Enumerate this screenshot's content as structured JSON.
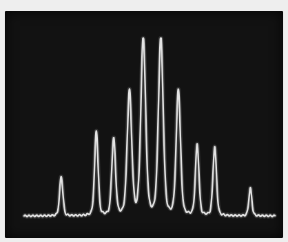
{
  "chart_data": {
    "type": "line",
    "title": "",
    "xlabel": "",
    "ylabel": "",
    "grid": false,
    "legend": "none",
    "trace_color": "#e3e3e3",
    "background_color": "#121212",
    "x_range": [
      0,
      1
    ],
    "y_range": [
      0,
      1
    ],
    "baseline": 0.055,
    "peaks": [
      {
        "x": 0.148,
        "height": 0.2,
        "width": 0.0065
      },
      {
        "x": 0.288,
        "height": 0.43,
        "width": 0.007
      },
      {
        "x": 0.357,
        "height": 0.39,
        "width": 0.0075
      },
      {
        "x": 0.42,
        "height": 0.63,
        "width": 0.009
      },
      {
        "x": 0.475,
        "height": 0.905,
        "width": 0.0095
      },
      {
        "x": 0.545,
        "height": 0.905,
        "width": 0.0095
      },
      {
        "x": 0.615,
        "height": 0.64,
        "width": 0.0085
      },
      {
        "x": 0.69,
        "height": 0.36,
        "width": 0.007
      },
      {
        "x": 0.76,
        "height": 0.35,
        "width": 0.007
      },
      {
        "x": 0.902,
        "height": 0.14,
        "width": 0.006
      }
    ]
  }
}
